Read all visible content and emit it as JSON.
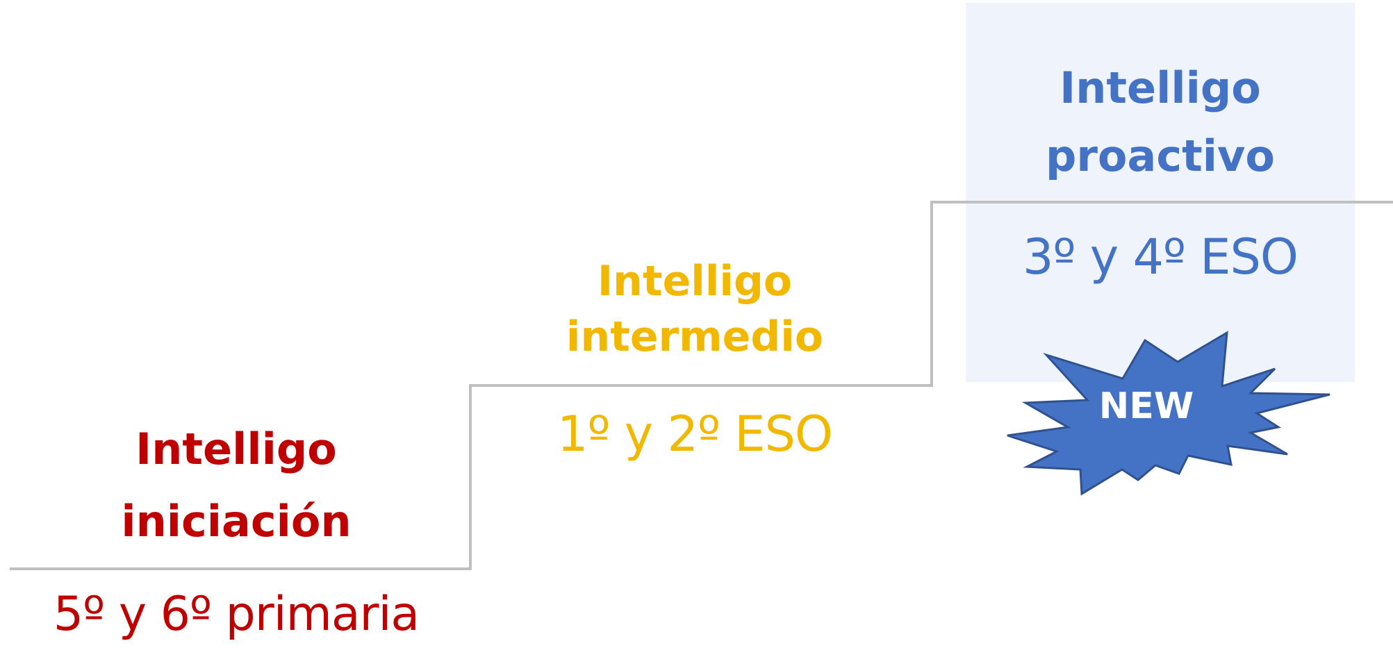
{
  "colors": {
    "iniciacion": "#c00000",
    "intermedio": "#f2b800",
    "proactivo": "#4472c4",
    "stair_line": "#bfbfbf",
    "highlight_bg": "#eef3fc",
    "badge_fill": "#4472c4",
    "badge_stroke": "#2f528f"
  },
  "levels": [
    {
      "title_line1": "Intelligo",
      "title_line2": "iniciación",
      "grade": "5º y 6º primaria"
    },
    {
      "title_line1": "Intelligo",
      "title_line2": "intermedio",
      "grade": "1º y 2º ESO"
    },
    {
      "title_line1": "Intelligo",
      "title_line2": "proactivo",
      "grade": "3º y 4º ESO"
    }
  ],
  "badge": {
    "label": "NEW",
    "icon": "starburst-icon"
  }
}
